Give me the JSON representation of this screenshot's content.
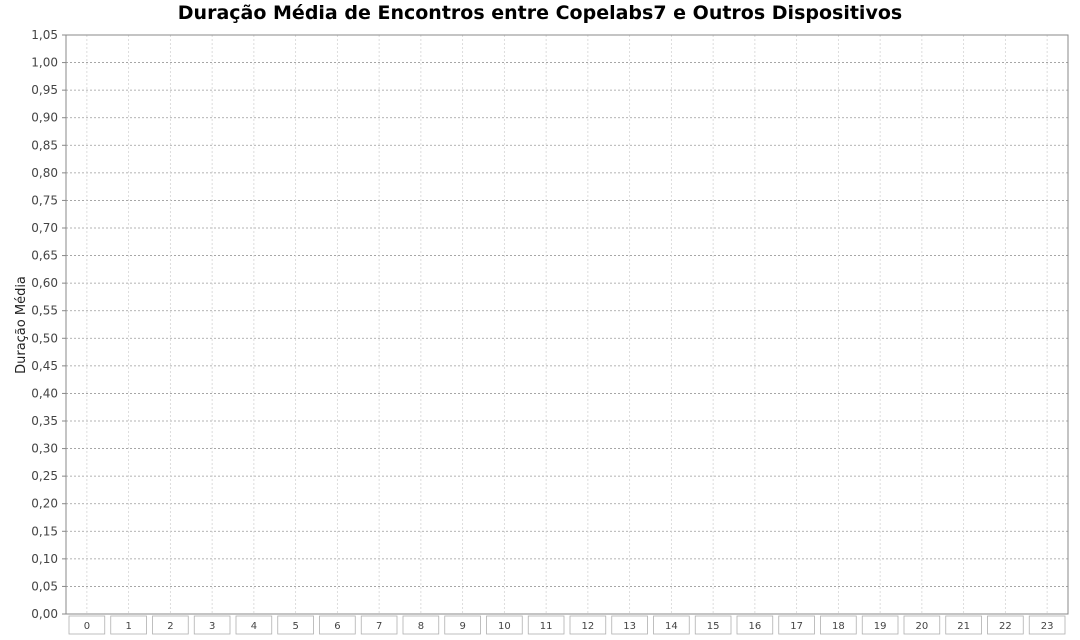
{
  "chart_data": {
    "type": "bar",
    "title": "Duração Média de Encontros entre Copelabs7 e Outros Dispositivos",
    "xlabel": "",
    "ylabel": "Duração Média",
    "categories": [
      "0",
      "1",
      "2",
      "3",
      "4",
      "5",
      "6",
      "7",
      "8",
      "9",
      "10",
      "11",
      "12",
      "13",
      "14",
      "15",
      "16",
      "17",
      "18",
      "19",
      "20",
      "21",
      "22",
      "23"
    ],
    "series": [],
    "ylim": [
      0,
      1.05
    ],
    "y_ticks": [
      "0,00",
      "0,05",
      "0,10",
      "0,15",
      "0,20",
      "0,25",
      "0,30",
      "0,35",
      "0,40",
      "0,45",
      "0,50",
      "0,55",
      "0,60",
      "0,65",
      "0,70",
      "0,75",
      "0,80",
      "0,85",
      "0,90",
      "0,95",
      "1,00",
      "1,05"
    ],
    "grid": true,
    "legend": "none"
  }
}
